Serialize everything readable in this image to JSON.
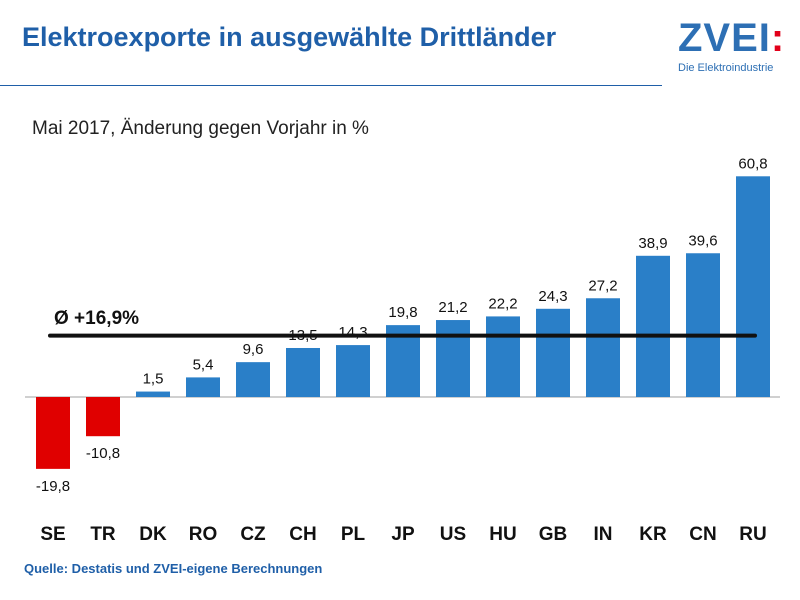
{
  "header": {
    "title": "Elektroexporte in ausgewählte Drittländer",
    "logo_text": "ZVEI",
    "logo_colon": ":",
    "logo_subtitle": "Die Elektroindustrie"
  },
  "footer": {
    "source": "Quelle: Destatis und ZVEI-eigene Berechnungen"
  },
  "colors": {
    "brand": "#1f5fa8",
    "positive": "#2a7fc8",
    "negative": "#e00000",
    "axis": "#a0a0a0",
    "average": "#111111"
  },
  "chart_data": {
    "type": "bar",
    "title": "Mai 2017, Änderung gegen Vorjahr in %",
    "categories": [
      "SE",
      "TR",
      "DK",
      "RO",
      "CZ",
      "CH",
      "PL",
      "JP",
      "US",
      "HU",
      "GB",
      "IN",
      "KR",
      "CN",
      "RU"
    ],
    "values": [
      -19.8,
      -10.8,
      1.5,
      5.4,
      9.6,
      13.5,
      14.3,
      19.8,
      21.2,
      22.2,
      24.3,
      27.2,
      38.9,
      39.6,
      60.8
    ],
    "value_labels": [
      "-19,8",
      "-10,8",
      "1,5",
      "5,4",
      "9,6",
      "13,5",
      "14,3",
      "19,8",
      "21,2",
      "22,2",
      "24,3",
      "27,2",
      "38,9",
      "39,6",
      "60,8"
    ],
    "average": 16.9,
    "average_label": "Ø +16,9%",
    "xlabel": "",
    "ylabel": "",
    "ylim": [
      -25,
      65
    ]
  }
}
